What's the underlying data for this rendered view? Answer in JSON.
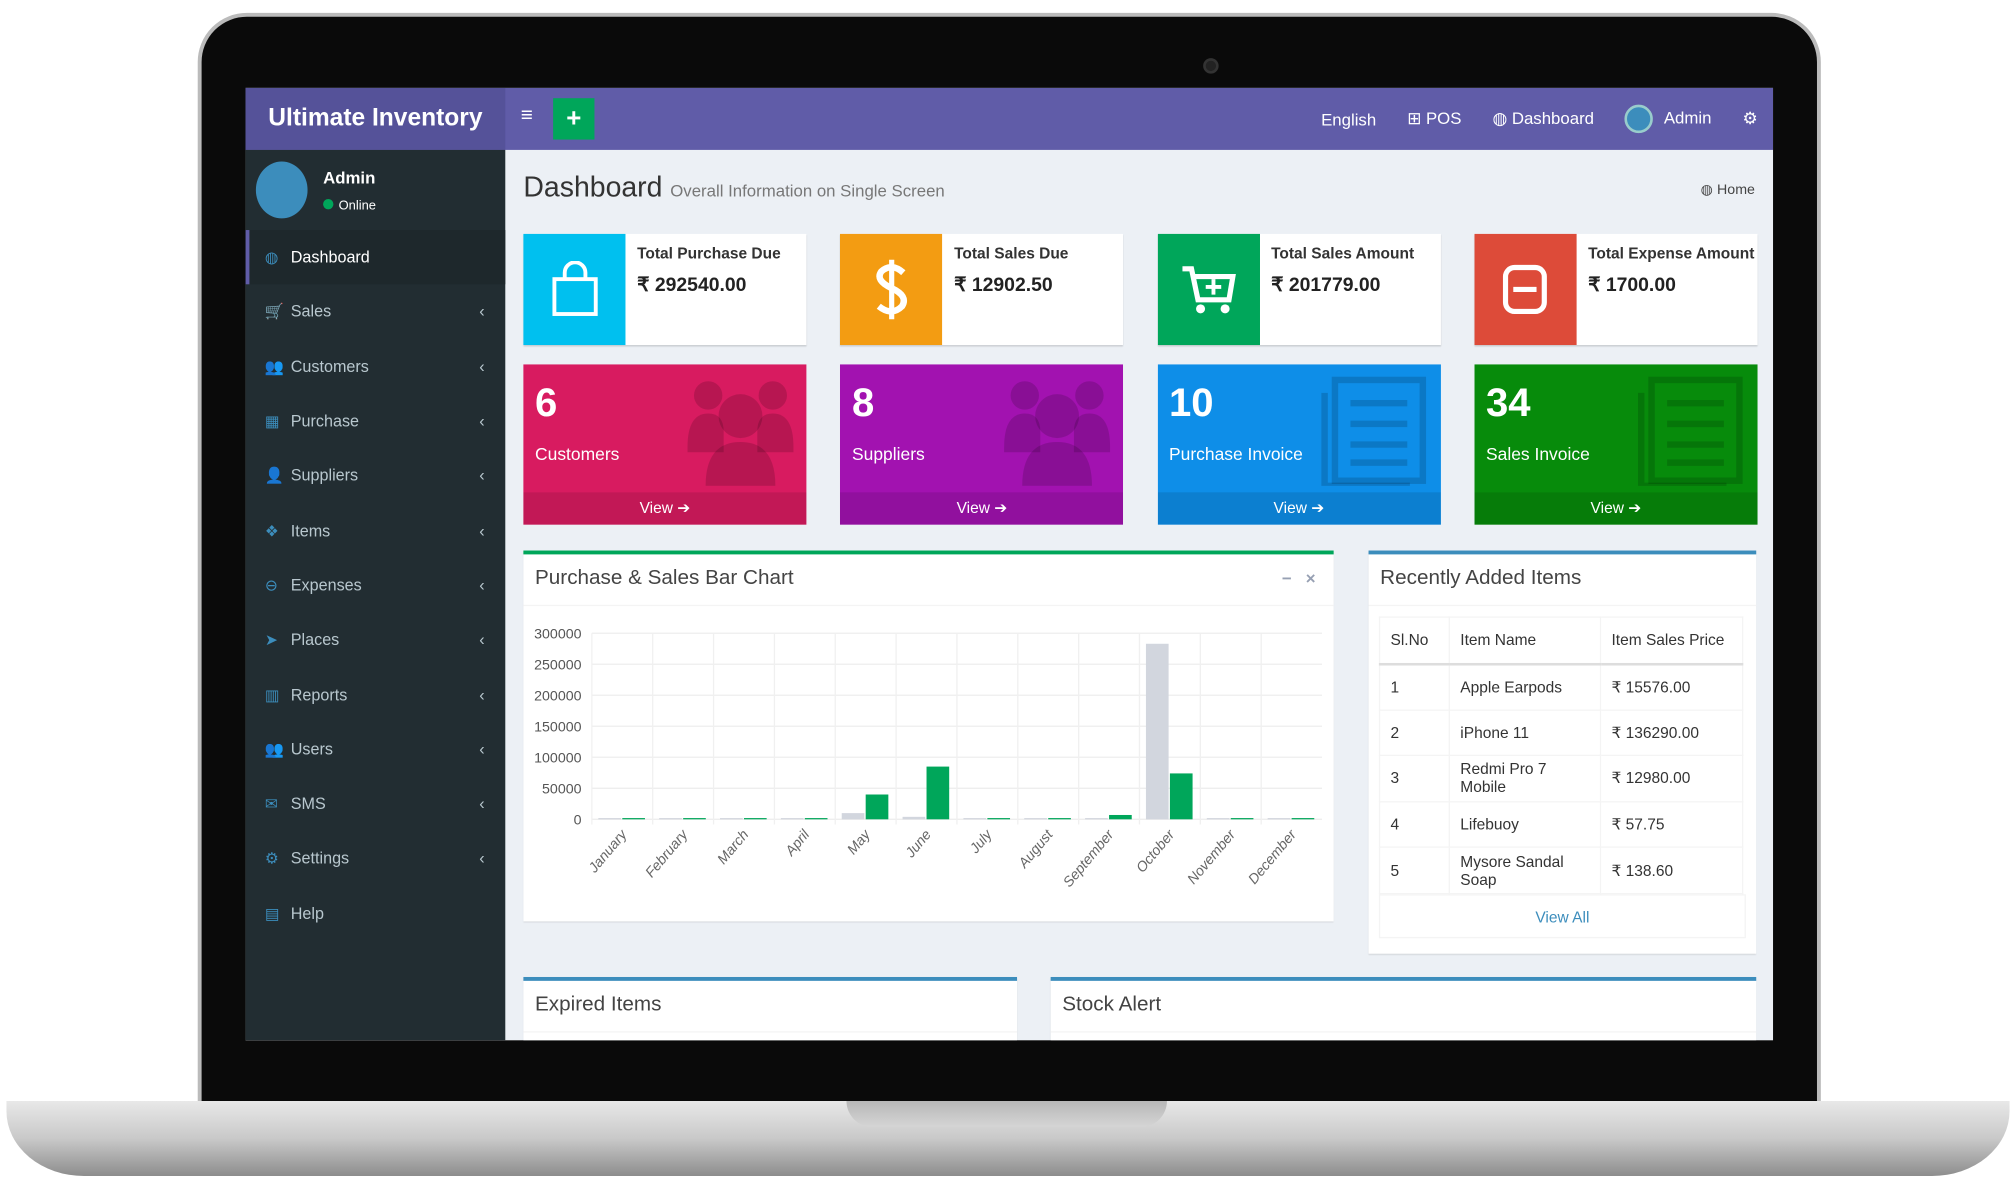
{
  "app": {
    "title": "Ultimate Inventory"
  },
  "header": {
    "menu_icon": "≡",
    "add_icon": "+",
    "nav": [
      {
        "icon": "",
        "label": "English"
      },
      {
        "icon": "⊞",
        "label": "POS"
      },
      {
        "icon": "◍",
        "label": "Dashboard"
      },
      {
        "icon": "",
        "label": "Admin"
      }
    ],
    "settings_icon": "⚙"
  },
  "user": {
    "name": "Admin",
    "status": "Online"
  },
  "sidebar": {
    "items": [
      {
        "icon": "◍",
        "label": "Dashboard"
      },
      {
        "icon": "🛒",
        "label": "Sales"
      },
      {
        "icon": "👥",
        "label": "Customers"
      },
      {
        "icon": "▦",
        "label": "Purchase"
      },
      {
        "icon": "👤",
        "label": "Suppliers"
      },
      {
        "icon": "❖",
        "label": "Items"
      },
      {
        "icon": "⊖",
        "label": "Expenses"
      },
      {
        "icon": "➤",
        "label": "Places"
      },
      {
        "icon": "▥",
        "label": "Reports"
      },
      {
        "icon": "👥",
        "label": "Users"
      },
      {
        "icon": "✉",
        "label": "SMS"
      },
      {
        "icon": "⚙",
        "label": "Settings"
      },
      {
        "icon": "▤",
        "label": "Help"
      }
    ],
    "chevron": "‹"
  },
  "page": {
    "title": "Dashboard",
    "subtitle": "Overall Information on Single Screen",
    "breadcrumb": "Home"
  },
  "info_boxes": [
    {
      "label": "Total Purchase Due",
      "value": "₹ 292540.00",
      "color": "#00c0ef",
      "icon": "🛍"
    },
    {
      "label": "Total Sales Due",
      "value": "₹ 12902.50",
      "color": "#f39c12",
      "icon": "$"
    },
    {
      "label": "Total Sales Amount",
      "value": "₹ 201779.00",
      "color": "#00a65a",
      "icon": "🛒"
    },
    {
      "label": "Total Expense Amount",
      "value": "₹ 1700.00",
      "color": "#dd4b39",
      "icon": "⊟"
    }
  ],
  "stat_boxes": [
    {
      "count": "6",
      "label": "Customers",
      "link": "View ➔",
      "color": "#d81b60",
      "icon": "👥"
    },
    {
      "count": "8",
      "label": "Suppliers",
      "link": "View ➔",
      "color": "#a212b0",
      "icon": "👥"
    },
    {
      "count": "10",
      "label": "Purchase Invoice",
      "link": "View ➔",
      "color": "#0e8ee8",
      "icon": "▤"
    },
    {
      "count": "34",
      "label": "Sales Invoice",
      "link": "View ➔",
      "color": "#078b0b",
      "icon": "▤"
    }
  ],
  "chart_panel": {
    "title": "Purchase & Sales Bar Chart",
    "minimize": "−",
    "close": "×"
  },
  "chart_data": {
    "type": "bar",
    "title": "",
    "xlabel": "",
    "ylabel": "",
    "ylim": [
      0,
      300000
    ],
    "yticks": [
      0,
      50000,
      100000,
      150000,
      200000,
      250000,
      300000
    ],
    "grid": true,
    "categories": [
      "January",
      "February",
      "March",
      "April",
      "May",
      "June",
      "July",
      "August",
      "September",
      "October",
      "November",
      "December"
    ],
    "series": [
      {
        "color": "#d2d6de",
        "values": [
          2000,
          2000,
          2000,
          2000,
          10000,
          4000,
          2000,
          2000,
          2000,
          283000,
          2000,
          2000
        ]
      },
      {
        "color": "#00a65a",
        "values": [
          2000,
          2000,
          2000,
          2000,
          40000,
          85000,
          2000,
          2000,
          7000,
          74000,
          2000,
          2000
        ]
      }
    ]
  },
  "recent_items": {
    "title": "Recently Added Items",
    "columns": [
      "Sl.No",
      "Item Name",
      "Item Sales Price"
    ],
    "rows": [
      [
        "1",
        "Apple Earpods",
        "₹ 15576.00"
      ],
      [
        "2",
        "iPhone 11",
        "₹ 136290.00"
      ],
      [
        "3",
        "Redmi Pro 7 Mobile",
        "₹ 12980.00"
      ],
      [
        "4",
        "Lifebuoy",
        "₹ 57.75"
      ],
      [
        "5",
        "Mysore Sandal Soap",
        "₹ 138.60"
      ]
    ],
    "view_all": "View All"
  },
  "expired": {
    "title": "Expired Items"
  },
  "stock": {
    "title": "Stock Alert"
  }
}
